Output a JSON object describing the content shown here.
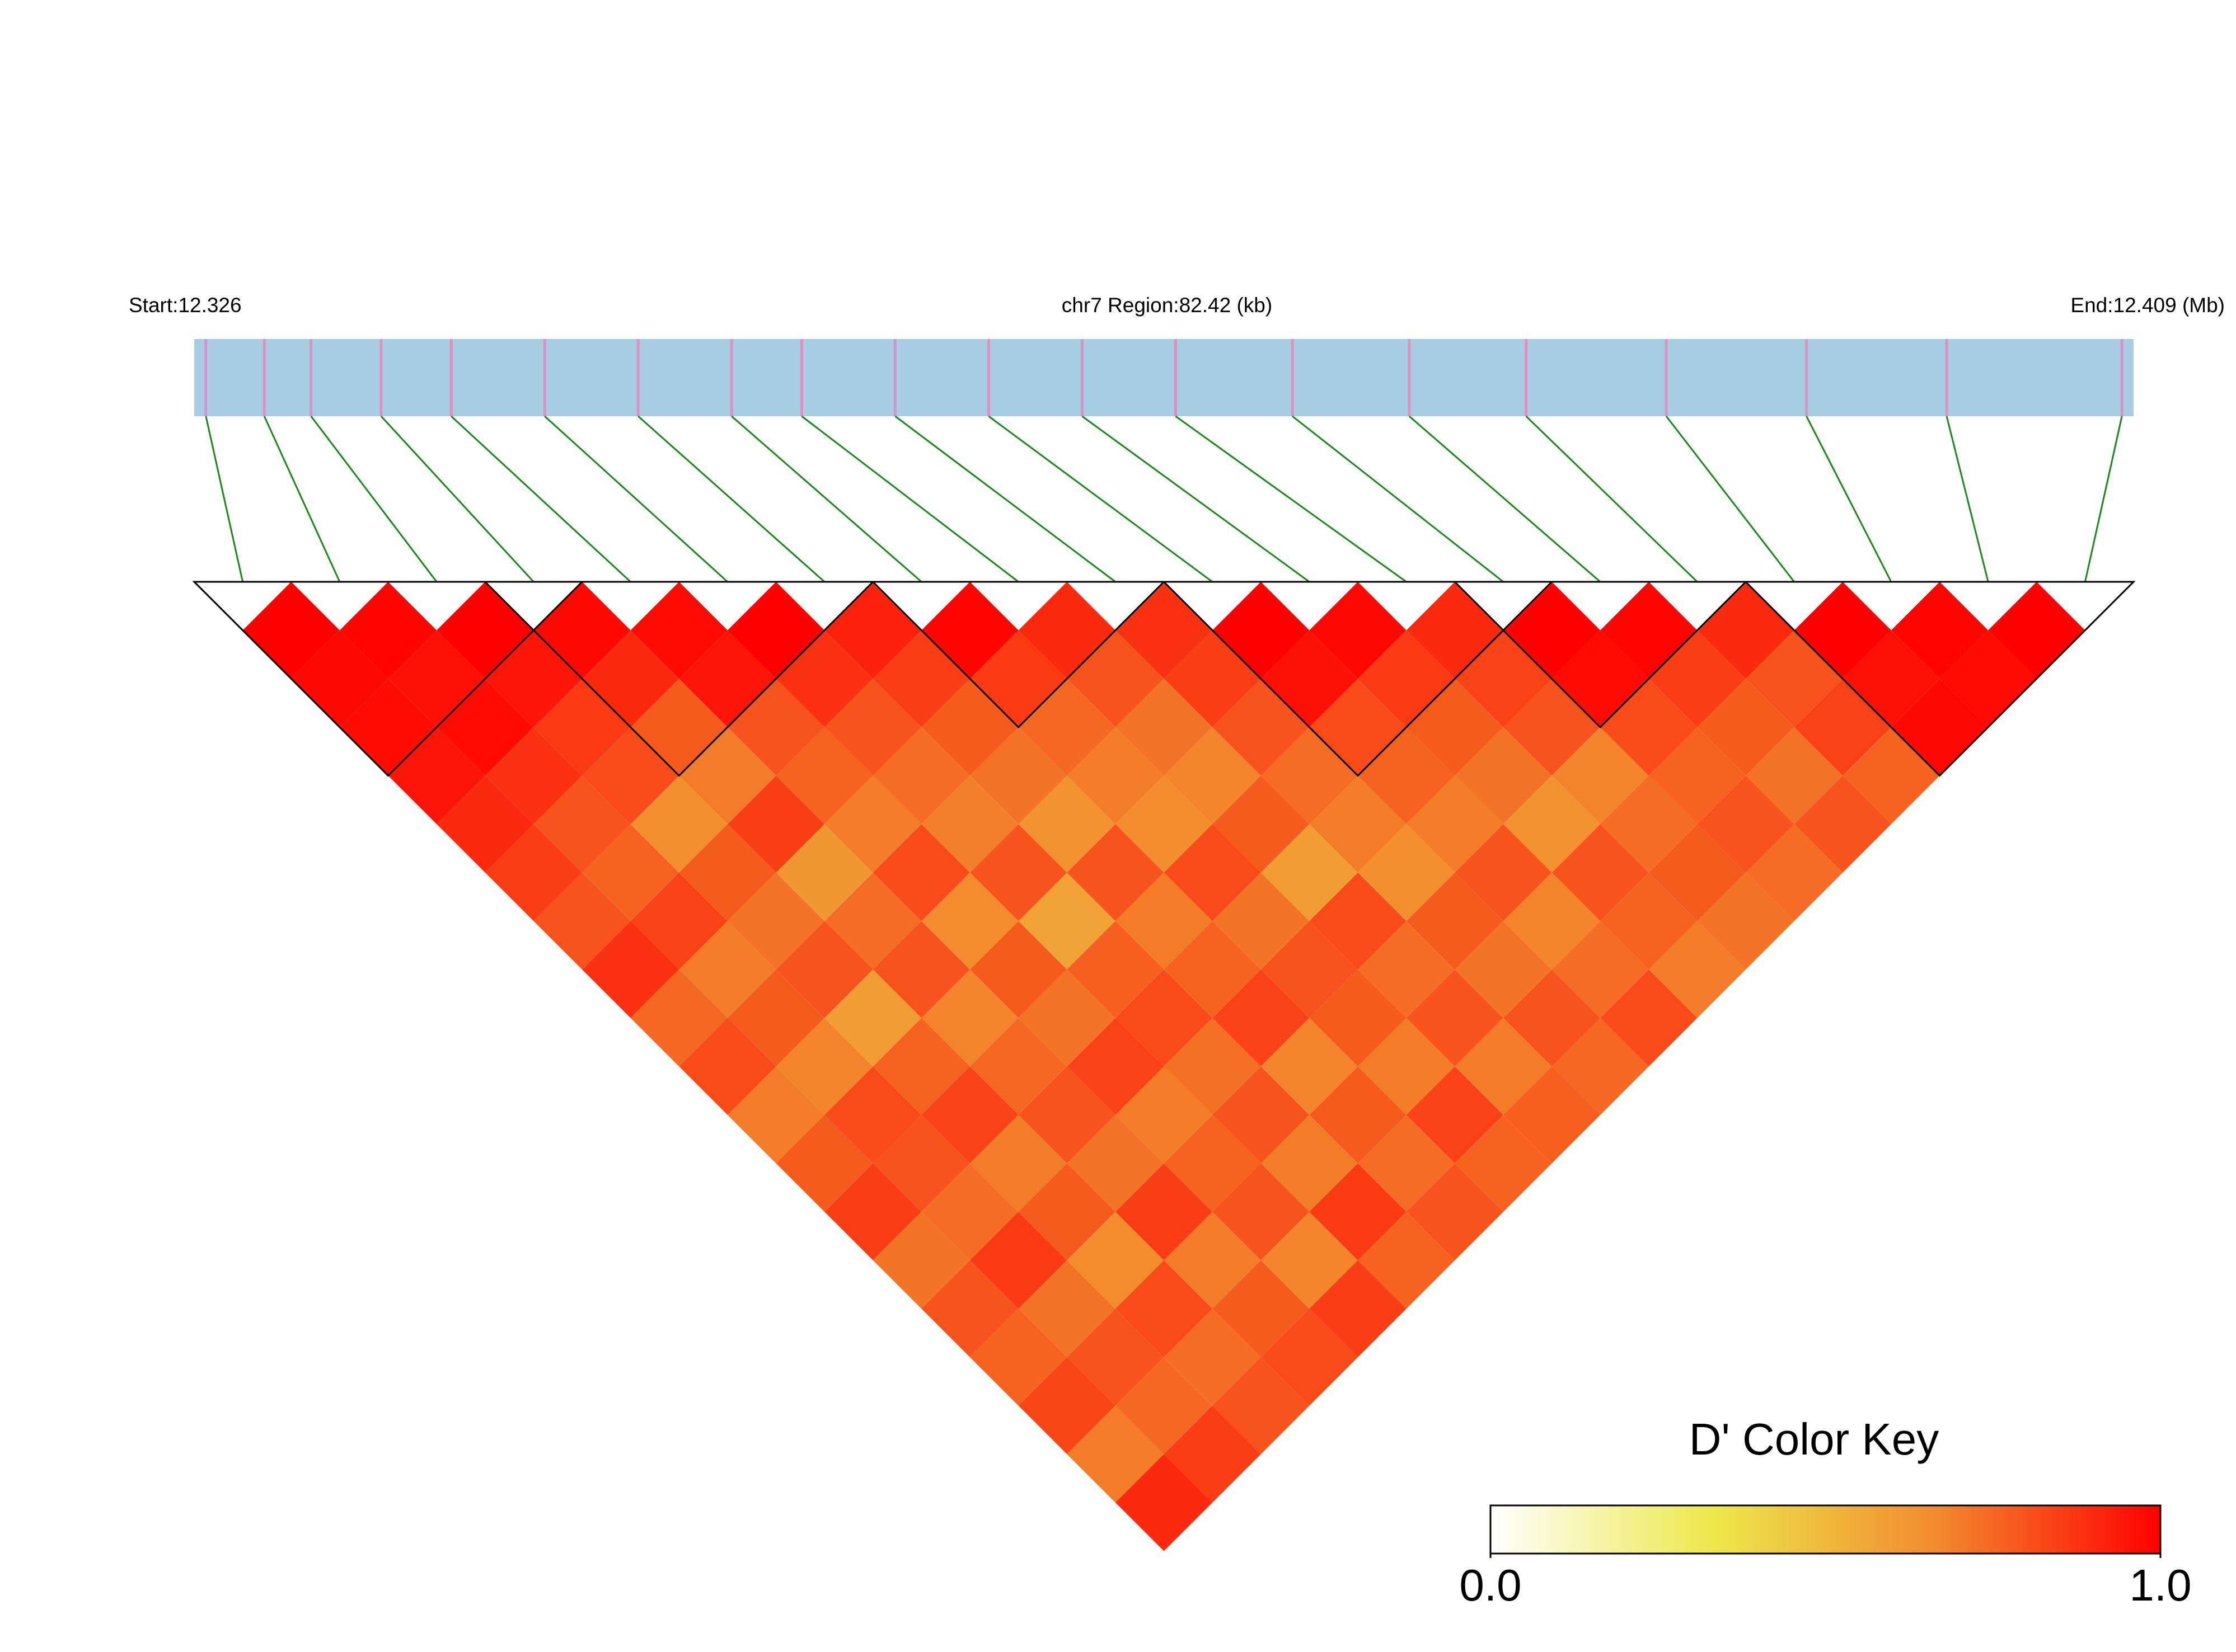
{
  "chart_data": {
    "type": "ld_heatmap",
    "start_label": "Start:12.326",
    "region_label": "chr7 Region:82.42 (kb)",
    "end_label": "End:12.409 (Mb)",
    "xlim": [
      12.326,
      12.409
    ],
    "positions": [
      12.3265,
      12.329,
      12.331,
      12.334,
      12.337,
      12.341,
      12.345,
      12.349,
      12.352,
      12.356,
      12.36,
      12.364,
      12.368,
      12.373,
      12.378,
      12.383,
      12.389,
      12.395,
      12.401,
      12.4085
    ],
    "dprime": [
      [
        1,
        0.98,
        0.97,
        0.95,
        0.9,
        0.85,
        0.8,
        0.88,
        0.75,
        0.82,
        0.7,
        0.78,
        0.85,
        0.72,
        0.8,
        0.76,
        0.83,
        0.7,
        0.9
      ],
      [
        0.99,
        0.96,
        0.97,
        0.88,
        0.8,
        0.76,
        0.84,
        0.7,
        0.78,
        0.68,
        0.82,
        0.8,
        0.74,
        0.86,
        0.72,
        0.8,
        0.75,
        0.85
      ],
      [
        1,
        0.95,
        0.86,
        0.82,
        0.65,
        0.78,
        0.72,
        0.8,
        0.6,
        0.76,
        0.84,
        0.7,
        0.78,
        0.66,
        0.82,
        0.74,
        0.8
      ],
      [
        0.98,
        0.9,
        0.78,
        0.7,
        0.85,
        0.62,
        0.74,
        0.8,
        0.68,
        0.75,
        0.8,
        0.72,
        0.85,
        0.7,
        0.78,
        0.82
      ],
      [
        0.97,
        0.95,
        0.8,
        0.76,
        0.7,
        0.82,
        0.66,
        0.78,
        0.72,
        0.84,
        0.7,
        0.76,
        0.8,
        0.68,
        0.85
      ],
      [
        1,
        0.88,
        0.8,
        0.74,
        0.69,
        0.8,
        0.58,
        0.77,
        0.82,
        0.73,
        0.8,
        0.7,
        0.86,
        0.76
      ],
      [
        0.92,
        0.85,
        0.78,
        0.72,
        0.64,
        0.8,
        0.7,
        0.76,
        0.84,
        0.68,
        0.78,
        0.74,
        0.8
      ],
      [
        0.99,
        0.86,
        0.75,
        0.7,
        0.66,
        0.82,
        0.72,
        0.8,
        0.78,
        0.7,
        0.84,
        0.76
      ],
      [
        0.9,
        0.8,
        0.72,
        0.68,
        0.78,
        0.6,
        0.82,
        0.74,
        0.8,
        0.7,
        0.77
      ],
      [
        0.88,
        0.85,
        0.8,
        0.74,
        0.7,
        0.65,
        0.78,
        0.72,
        0.8,
        0.75
      ],
      [
        1,
        0.96,
        0.82,
        0.76,
        0.7,
        0.8,
        0.68,
        0.74,
        0.82
      ],
      [
        0.98,
        0.86,
        0.78,
        0.72,
        0.64,
        0.8,
        0.76,
        0.7
      ],
      [
        0.9,
        0.84,
        0.8,
        0.68,
        0.74,
        0.78,
        0.72
      ],
      [
        1,
        0.97,
        0.82,
        0.76,
        0.8,
        0.74
      ],
      [
        0.99,
        0.85,
        0.78,
        0.72,
        0.8
      ],
      [
        0.9,
        0.8,
        0.84,
        0.76
      ],
      [
        1,
        0.96,
        0.98
      ],
      [
        0.99,
        0.97
      ],
      [
        1
      ]
    ],
    "blocks": [
      [
        0,
        3
      ],
      [
        3,
        6
      ],
      [
        7,
        9
      ],
      [
        10,
        13
      ],
      [
        13,
        15
      ],
      [
        16,
        19
      ]
    ],
    "bar_color": "#a6cde2",
    "snp_color": "#de8fc6",
    "link_color": "#1a8a1a",
    "colormap": [
      "#ffffff",
      "#ede84a",
      "#f28a2e",
      "#ff0000"
    ],
    "legend_title": "D' Color Key",
    "colorbar_lim": [
      0,
      1
    ],
    "colorbar_ticks": [
      {
        "value": 0,
        "label": "0.0"
      },
      {
        "value": 1,
        "label": "1.0"
      }
    ]
  }
}
